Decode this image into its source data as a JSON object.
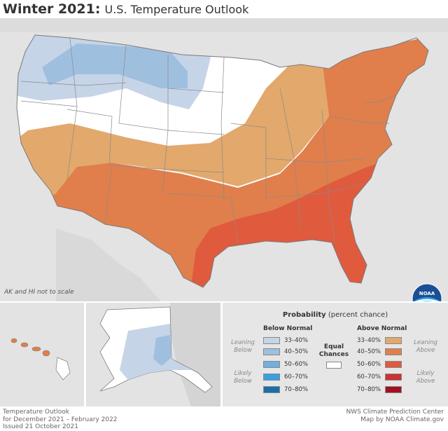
{
  "header": {
    "title_bold": "Winter 2021:",
    "title_rest": "U.S. Temperature Outlook"
  },
  "map": {
    "note": "AK and HI not to scale",
    "logo_text": "NOAA",
    "colors": {
      "background": "#e3e3e3",
      "equal_chances": "#ffffff",
      "below_33_40": "#c6d4e8",
      "below_40_50": "#9fbfdf",
      "below_50_60": "#6fb0e0",
      "below_60_70": "#3c9fe0",
      "below_70_80": "#1a6fa8",
      "above_33_40": "#e2a86c",
      "above_40_50": "#e07f4c",
      "above_50_60": "#e05a3e",
      "above_60_70": "#c93433",
      "above_70_80": "#a1121f",
      "borders": "#7a7a7a"
    }
  },
  "legend": {
    "title_bold": "Probability",
    "title_rest": "(percent chance)",
    "below_header": "Below Normal",
    "above_header": "Above Normal",
    "below_rows": [
      "33–40%",
      "40–50%",
      "50–60%",
      "60–70%",
      "70–80%"
    ],
    "above_rows": [
      "33–40%",
      "40–50%",
      "50–60%",
      "60–70%",
      "70–80%"
    ],
    "leaning_below": "Leaning Below",
    "likely_below": "Likely Below",
    "leaning_above": "Leaning Above",
    "likely_above": "Likely Above",
    "equal_chances": "Equal Chances"
  },
  "footer": {
    "left_line1": "Temperature Outlook",
    "left_line2": "for December 2021 – February 2022",
    "left_line3": "Issued 21 October 2021",
    "right_line1": "NWS Climate Prediction Center",
    "right_line2": "Map by NOAA Climate.gov"
  }
}
